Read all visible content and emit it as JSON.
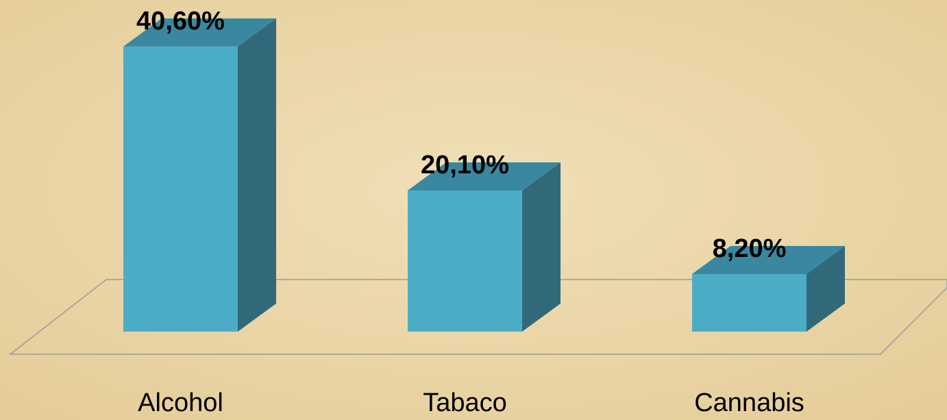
{
  "chart_data": {
    "type": "bar3d",
    "categories": [
      "Alcohol",
      "Tabaco",
      "Cannabis"
    ],
    "values": [
      40.6,
      20.1,
      8.2
    ],
    "value_labels": [
      "40,60%",
      "20,10%",
      "8,20%"
    ],
    "color": "#4bacc6"
  }
}
